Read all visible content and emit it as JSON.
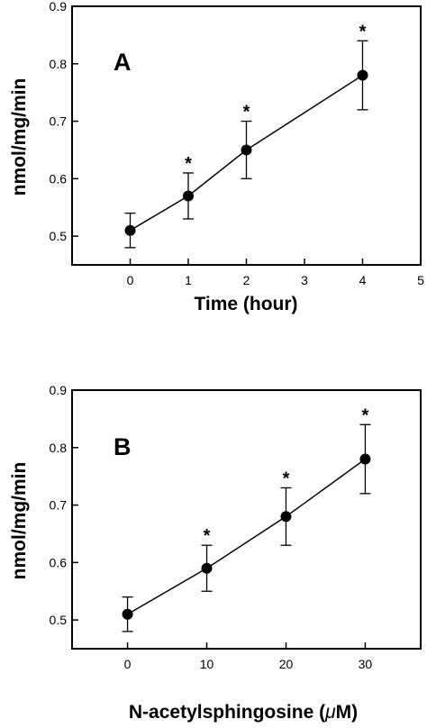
{
  "chart_data": [
    {
      "type": "line",
      "panel_label": "A",
      "xlabel": "Time (hour)",
      "ylabel": "nmol/mg/min",
      "xlim": [
        -1,
        5
      ],
      "ylim": [
        0.45,
        0.9
      ],
      "xticks": [
        "0",
        "1",
        "2",
        "3",
        "4",
        "5"
      ],
      "yticks": [
        "0.5",
        "0.6",
        "0.7",
        "0.8",
        "0.9"
      ],
      "x": [
        0,
        1,
        2,
        4
      ],
      "y": [
        0.51,
        0.57,
        0.65,
        0.78
      ],
      "error": [
        0.03,
        0.04,
        0.05,
        0.06
      ],
      "annotations": [
        "",
        "*",
        "*",
        "*"
      ]
    },
    {
      "type": "line",
      "panel_label": "B",
      "xlabel_prefix": "N-acetylsphingosine (",
      "xlabel_unit_mu": "μ",
      "xlabel_suffix": "M)",
      "ylabel": "nmol/mg/min",
      "xlim": [
        -7,
        37
      ],
      "ylim": [
        0.45,
        0.9
      ],
      "xticks": [
        "0",
        "10",
        "20",
        "30"
      ],
      "yticks": [
        "0.5",
        "0.6",
        "0.7",
        "0.8",
        "0.9"
      ],
      "x": [
        0,
        10,
        20,
        30
      ],
      "y": [
        0.51,
        0.59,
        0.68,
        0.78
      ],
      "error": [
        0.03,
        0.04,
        0.05,
        0.06
      ],
      "annotations": [
        "",
        "*",
        "*",
        "*"
      ]
    }
  ]
}
